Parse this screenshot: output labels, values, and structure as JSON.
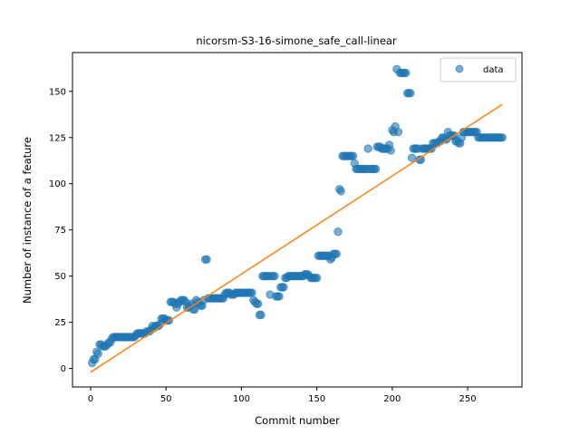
{
  "chart_data": {
    "type": "scatter",
    "title": "nicorsm-S3-16-simone_safe_call-linear",
    "xlabel": "Commit number",
    "ylabel": "Number of instance of a feature",
    "xlim": [
      -12,
      286
    ],
    "ylim": [
      -10,
      171
    ],
    "xticks": [
      0,
      50,
      100,
      150,
      200,
      250
    ],
    "yticks": [
      0,
      25,
      50,
      75,
      100,
      125,
      150
    ],
    "grid": false,
    "legend_position": "top-right",
    "colors": {
      "data": "#1f77b4",
      "fit": "#ff7f0e"
    },
    "series": [
      {
        "name": "data",
        "marker": "circle",
        "points": [
          [
            1,
            3
          ],
          [
            2,
            5
          ],
          [
            3,
            5
          ],
          [
            4,
            9
          ],
          [
            5,
            8
          ],
          [
            6,
            13
          ],
          [
            7,
            13
          ],
          [
            8,
            12
          ],
          [
            9,
            12
          ],
          [
            10,
            12
          ],
          [
            11,
            13
          ],
          [
            12,
            14
          ],
          [
            13,
            14
          ],
          [
            14,
            16
          ],
          [
            15,
            17
          ],
          [
            16,
            17
          ],
          [
            17,
            17
          ],
          [
            18,
            17
          ],
          [
            19,
            17
          ],
          [
            20,
            17
          ],
          [
            21,
            17
          ],
          [
            22,
            17
          ],
          [
            23,
            17
          ],
          [
            24,
            17
          ],
          [
            25,
            17
          ],
          [
            26,
            17
          ],
          [
            27,
            17
          ],
          [
            28,
            17
          ],
          [
            29,
            17
          ],
          [
            30,
            18
          ],
          [
            31,
            19
          ],
          [
            32,
            19
          ],
          [
            33,
            19
          ],
          [
            34,
            19
          ],
          [
            35,
            19
          ],
          [
            36,
            19
          ],
          [
            37,
            20
          ],
          [
            38,
            20
          ],
          [
            39,
            20
          ],
          [
            40,
            21
          ],
          [
            41,
            23
          ],
          [
            42,
            22
          ],
          [
            43,
            23
          ],
          [
            44,
            23
          ],
          [
            45,
            23
          ],
          [
            46,
            24
          ],
          [
            47,
            27
          ],
          [
            48,
            27
          ],
          [
            49,
            27
          ],
          [
            50,
            26
          ],
          [
            51,
            26
          ],
          [
            52,
            26
          ],
          [
            53,
            36
          ],
          [
            54,
            36
          ],
          [
            55,
            36
          ],
          [
            56,
            35
          ],
          [
            57,
            33
          ],
          [
            58,
            35
          ],
          [
            59,
            36
          ],
          [
            60,
            37
          ],
          [
            61,
            37
          ],
          [
            62,
            37
          ],
          [
            63,
            36
          ],
          [
            64,
            33
          ],
          [
            65,
            33
          ],
          [
            66,
            34
          ],
          [
            67,
            35
          ],
          [
            68,
            32
          ],
          [
            69,
            32
          ],
          [
            70,
            37
          ],
          [
            71,
            36
          ],
          [
            72,
            35
          ],
          [
            73,
            34
          ],
          [
            74,
            34
          ],
          [
            75,
            37
          ],
          [
            76,
            59
          ],
          [
            77,
            59
          ],
          [
            78,
            38
          ],
          [
            79,
            38
          ],
          [
            80,
            38
          ],
          [
            81,
            38
          ],
          [
            82,
            38
          ],
          [
            83,
            38
          ],
          [
            84,
            38
          ],
          [
            85,
            38
          ],
          [
            86,
            38
          ],
          [
            87,
            38
          ],
          [
            88,
            38
          ],
          [
            89,
            40
          ],
          [
            90,
            41
          ],
          [
            91,
            41
          ],
          [
            92,
            41
          ],
          [
            93,
            40
          ],
          [
            94,
            40
          ],
          [
            95,
            40
          ],
          [
            96,
            41
          ],
          [
            97,
            41
          ],
          [
            98,
            41
          ],
          [
            99,
            41
          ],
          [
            100,
            41
          ],
          [
            101,
            41
          ],
          [
            102,
            41
          ],
          [
            103,
            41
          ],
          [
            104,
            41
          ],
          [
            105,
            41
          ],
          [
            106,
            41
          ],
          [
            107,
            41
          ],
          [
            108,
            37
          ],
          [
            109,
            36
          ],
          [
            110,
            35
          ],
          [
            111,
            35
          ],
          [
            112,
            29
          ],
          [
            113,
            29
          ],
          [
            114,
            50
          ],
          [
            115,
            50
          ],
          [
            116,
            50
          ],
          [
            117,
            50
          ],
          [
            118,
            50
          ],
          [
            119,
            40
          ],
          [
            120,
            50
          ],
          [
            121,
            50
          ],
          [
            122,
            50
          ],
          [
            123,
            39
          ],
          [
            124,
            39
          ],
          [
            125,
            39
          ],
          [
            126,
            44
          ],
          [
            127,
            44
          ],
          [
            128,
            44
          ],
          [
            129,
            49
          ],
          [
            130,
            49
          ],
          [
            131,
            50
          ],
          [
            132,
            50
          ],
          [
            133,
            50
          ],
          [
            134,
            50
          ],
          [
            135,
            50
          ],
          [
            136,
            50
          ],
          [
            137,
            50
          ],
          [
            138,
            50
          ],
          [
            139,
            50
          ],
          [
            140,
            50
          ],
          [
            141,
            50
          ],
          [
            142,
            51
          ],
          [
            143,
            51
          ],
          [
            144,
            51
          ],
          [
            145,
            50
          ],
          [
            146,
            49
          ],
          [
            147,
            49
          ],
          [
            148,
            49
          ],
          [
            149,
            49
          ],
          [
            150,
            49
          ],
          [
            151,
            61
          ],
          [
            152,
            61
          ],
          [
            153,
            61
          ],
          [
            154,
            61
          ],
          [
            155,
            61
          ],
          [
            156,
            61
          ],
          [
            157,
            61
          ],
          [
            158,
            61
          ],
          [
            159,
            59
          ],
          [
            160,
            60
          ],
          [
            161,
            62
          ],
          [
            162,
            62
          ],
          [
            163,
            62
          ],
          [
            164,
            74
          ],
          [
            165,
            97
          ],
          [
            166,
            96
          ],
          [
            167,
            115
          ],
          [
            168,
            115
          ],
          [
            169,
            115
          ],
          [
            170,
            115
          ],
          [
            171,
            115
          ],
          [
            172,
            115
          ],
          [
            173,
            115
          ],
          [
            174,
            115
          ],
          [
            175,
            111
          ],
          [
            176,
            108
          ],
          [
            177,
            108
          ],
          [
            178,
            108
          ],
          [
            179,
            108
          ],
          [
            180,
            108
          ],
          [
            181,
            108
          ],
          [
            182,
            108
          ],
          [
            183,
            108
          ],
          [
            184,
            119
          ],
          [
            185,
            108
          ],
          [
            186,
            108
          ],
          [
            187,
            108
          ],
          [
            188,
            108
          ],
          [
            189,
            108
          ],
          [
            190,
            120
          ],
          [
            191,
            120
          ],
          [
            192,
            120
          ],
          [
            193,
            119
          ],
          [
            194,
            119
          ],
          [
            195,
            119
          ],
          [
            196,
            119
          ],
          [
            197,
            119
          ],
          [
            198,
            121
          ],
          [
            199,
            118
          ],
          [
            200,
            129
          ],
          [
            201,
            128
          ],
          [
            202,
            131
          ],
          [
            203,
            162
          ],
          [
            204,
            128
          ],
          [
            205,
            160
          ],
          [
            206,
            160
          ],
          [
            207,
            160
          ],
          [
            208,
            160
          ],
          [
            209,
            160
          ],
          [
            210,
            149
          ],
          [
            211,
            149
          ],
          [
            212,
            149
          ],
          [
            213,
            114
          ],
          [
            214,
            119
          ],
          [
            215,
            119
          ],
          [
            216,
            119
          ],
          [
            217,
            119
          ],
          [
            218,
            113
          ],
          [
            219,
            113
          ],
          [
            220,
            119
          ],
          [
            221,
            119
          ],
          [
            222,
            119
          ],
          [
            223,
            119
          ],
          [
            224,
            119
          ],
          [
            225,
            119
          ],
          [
            226,
            119
          ],
          [
            227,
            122
          ],
          [
            228,
            122
          ],
          [
            229,
            122
          ],
          [
            230,
            122
          ],
          [
            231,
            123
          ],
          [
            232,
            123
          ],
          [
            233,
            125
          ],
          [
            234,
            125
          ],
          [
            235,
            124
          ],
          [
            236,
            124
          ],
          [
            237,
            128
          ],
          [
            238,
            126
          ],
          [
            239,
            126
          ],
          [
            240,
            126
          ],
          [
            241,
            126
          ],
          [
            242,
            123
          ],
          [
            243,
            123
          ],
          [
            244,
            122
          ],
          [
            245,
            122
          ],
          [
            246,
            125
          ],
          [
            247,
            128
          ],
          [
            248,
            128
          ],
          [
            249,
            128
          ],
          [
            250,
            128
          ],
          [
            251,
            128
          ],
          [
            252,
            128
          ],
          [
            253,
            128
          ],
          [
            254,
            128
          ],
          [
            255,
            128
          ],
          [
            256,
            128
          ],
          [
            257,
            125
          ],
          [
            258,
            125
          ],
          [
            259,
            125
          ],
          [
            260,
            125
          ],
          [
            261,
            125
          ],
          [
            262,
            125
          ],
          [
            263,
            125
          ],
          [
            264,
            125
          ],
          [
            265,
            125
          ],
          [
            266,
            125
          ],
          [
            267,
            125
          ],
          [
            268,
            125
          ],
          [
            269,
            125
          ],
          [
            270,
            125
          ],
          [
            271,
            125
          ],
          [
            272,
            125
          ],
          [
            273,
            125
          ]
        ]
      },
      {
        "name": "",
        "type": "line",
        "points": [
          [
            0,
            -2
          ],
          [
            273,
            143
          ]
        ]
      }
    ]
  }
}
